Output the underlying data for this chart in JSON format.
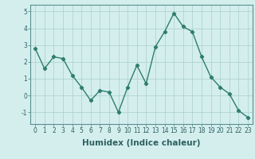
{
  "x": [
    0,
    1,
    2,
    3,
    4,
    5,
    6,
    7,
    8,
    9,
    10,
    11,
    12,
    13,
    14,
    15,
    16,
    17,
    18,
    19,
    20,
    21,
    22,
    23
  ],
  "y": [
    2.8,
    1.6,
    2.3,
    2.2,
    1.2,
    0.5,
    -0.3,
    0.3,
    0.2,
    -1.0,
    0.5,
    1.8,
    0.7,
    2.9,
    3.8,
    4.9,
    4.1,
    3.8,
    2.3,
    1.1,
    0.5,
    0.1,
    -0.9,
    -1.3
  ],
  "line_color": "#2e7d6e",
  "marker": "D",
  "marker_size": 2.2,
  "bg_color": "#d4eeee",
  "grid_color": "#aacece",
  "xlabel": "Humidex (Indice chaleur)",
  "ylim": [
    -1.7,
    5.4
  ],
  "xlim": [
    -0.5,
    23.5
  ],
  "yticks": [
    -1,
    0,
    1,
    2,
    3,
    4,
    5
  ],
  "xticks": [
    0,
    1,
    2,
    3,
    4,
    5,
    6,
    7,
    8,
    9,
    10,
    11,
    12,
    13,
    14,
    15,
    16,
    17,
    18,
    19,
    20,
    21,
    22,
    23
  ],
  "tick_fontsize": 5.5,
  "xlabel_fontsize": 7.5,
  "linewidth": 1.0
}
